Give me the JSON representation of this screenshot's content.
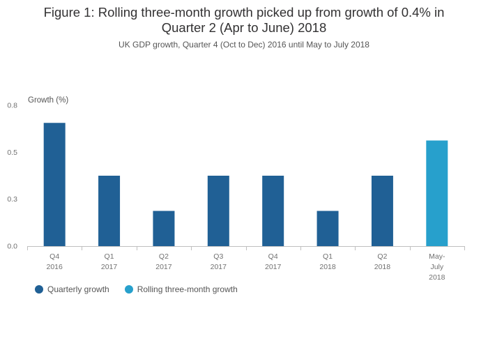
{
  "chart_data": {
    "type": "bar",
    "title": "Figure 1: Rolling three-month growth picked up from growth of 0.4% in Quarter 2 (Apr to June) 2018",
    "subtitle": "UK GDP growth, Quarter 4 (Oct to Dec) 2016 until May to July 2018",
    "ylabel": "Growth (%)",
    "ylim": [
      0,
      0.8
    ],
    "yticks": [
      "0.0",
      "0.3",
      "0.5",
      "0.8"
    ],
    "grid": false,
    "legend_position": "bottom-left",
    "categories": [
      [
        "Q4",
        "2016"
      ],
      [
        "Q1",
        "2017"
      ],
      [
        "Q2",
        "2017"
      ],
      [
        "Q3",
        "2017"
      ],
      [
        "Q4",
        "2017"
      ],
      [
        "Q1",
        "2018"
      ],
      [
        "Q2",
        "2018"
      ],
      [
        "May-",
        "July",
        "2018"
      ]
    ],
    "series": [
      {
        "name": "Quarterly growth",
        "color": "#206095",
        "values": [
          0.7,
          0.4,
          0.2,
          0.4,
          0.4,
          0.2,
          0.4,
          null
        ]
      },
      {
        "name": "Rolling three-month growth",
        "color": "#27a0cc",
        "values": [
          null,
          null,
          null,
          null,
          null,
          null,
          null,
          0.6
        ]
      }
    ]
  }
}
